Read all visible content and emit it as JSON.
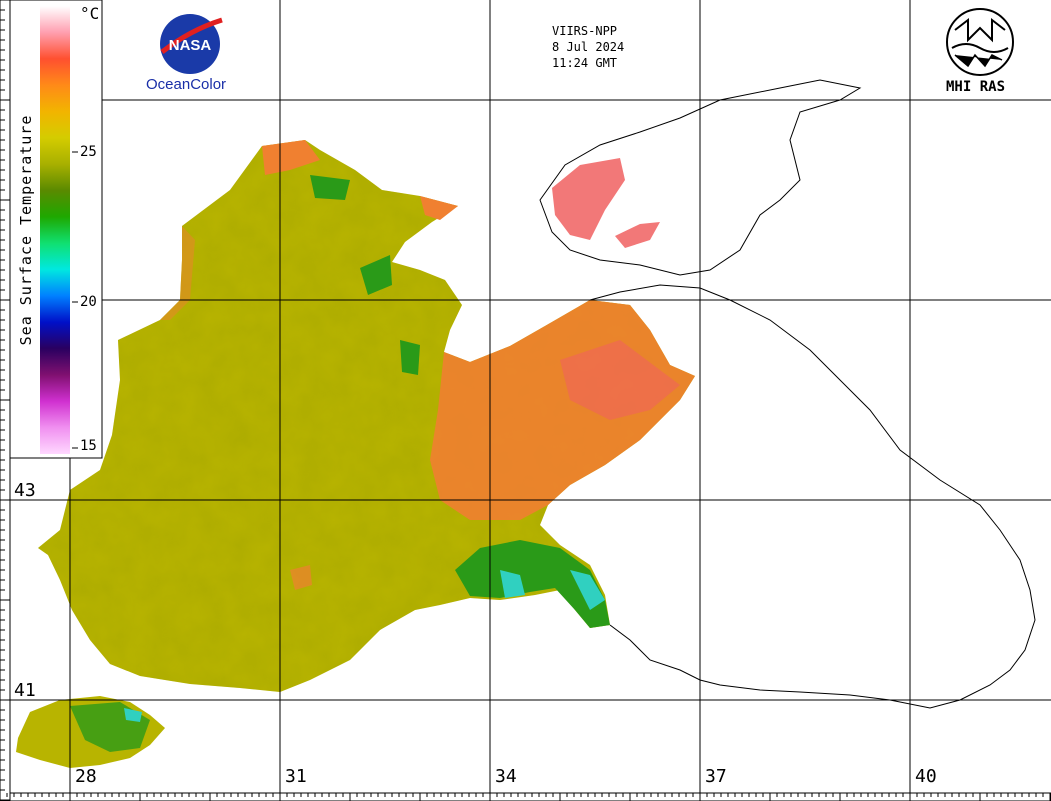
{
  "satellite": {
    "sensor": "VIIRS-NPP",
    "date": "8 Jul 2024",
    "time": "11:24 GMT"
  },
  "legend": {
    "title": "Sea Surface Temperature",
    "unit": "°C",
    "ticks": [
      "25",
      "20",
      "15"
    ],
    "colors": [
      "#ffffff",
      "#ff9fb0",
      "#ff5030",
      "#ff8a18",
      "#f2b400",
      "#d4cc00",
      "#a8b000",
      "#5a8a00",
      "#1ea800",
      "#10e070",
      "#00e8e0",
      "#0080ff",
      "#0010c8",
      "#2a0060",
      "#801070",
      "#d030d0",
      "#f090f0",
      "#ffd8ff"
    ]
  },
  "axes": {
    "latitudes": [
      "43",
      "41"
    ],
    "longitudes": [
      "28",
      "31",
      "34",
      "37",
      "40"
    ]
  },
  "logos": {
    "nasa_text": "NASA",
    "oceancolor": "OceanColor",
    "mhi": "MHI RAS"
  },
  "map_colors": {
    "sea_base": "#b8b400",
    "sea_dark": "#8f9100",
    "warm": "#f08030",
    "hot": "#f06060",
    "cool_green": "#2a9a18",
    "cyan": "#30d0c0",
    "coast": "#000000"
  }
}
